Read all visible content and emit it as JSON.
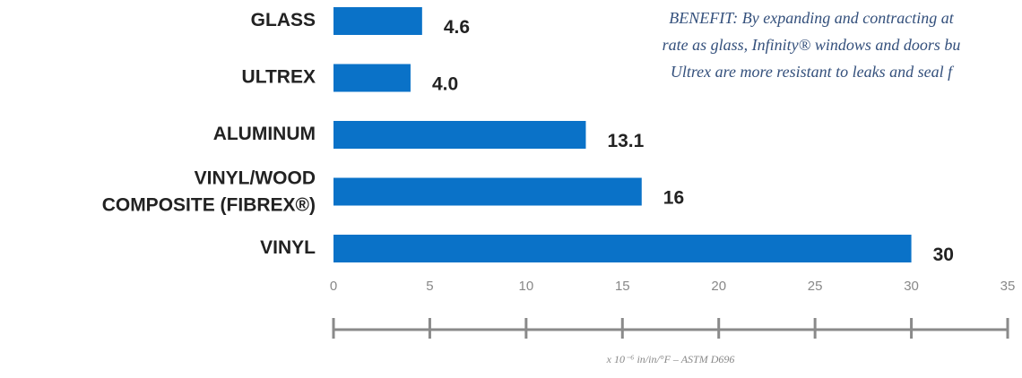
{
  "chart_data": {
    "type": "barh",
    "categories": [
      "GLASS",
      "ULTREX",
      "ALUMINUM",
      [
        "VINYL/WOOD",
        "COMPOSITE (FIBREX®)"
      ],
      "VINYL"
    ],
    "values": [
      4.6,
      4.0,
      13.1,
      16,
      30
    ],
    "value_labels": [
      "4.6",
      "4.0",
      "13.1",
      "16",
      "30"
    ],
    "color": "#0a72c8",
    "xlim": [
      0,
      35
    ],
    "xticks": [
      0,
      5,
      10,
      15,
      20,
      25,
      30,
      35
    ],
    "x_label": "x 10⁻⁶ in/in/°F – ASTM D696",
    "annotation": [
      "BENEFIT: By expanding and contracting at",
      "rate as glass, Infinity® windows and doors bu",
      "Ultrex are more resistant to leaks and seal f"
    ]
  }
}
